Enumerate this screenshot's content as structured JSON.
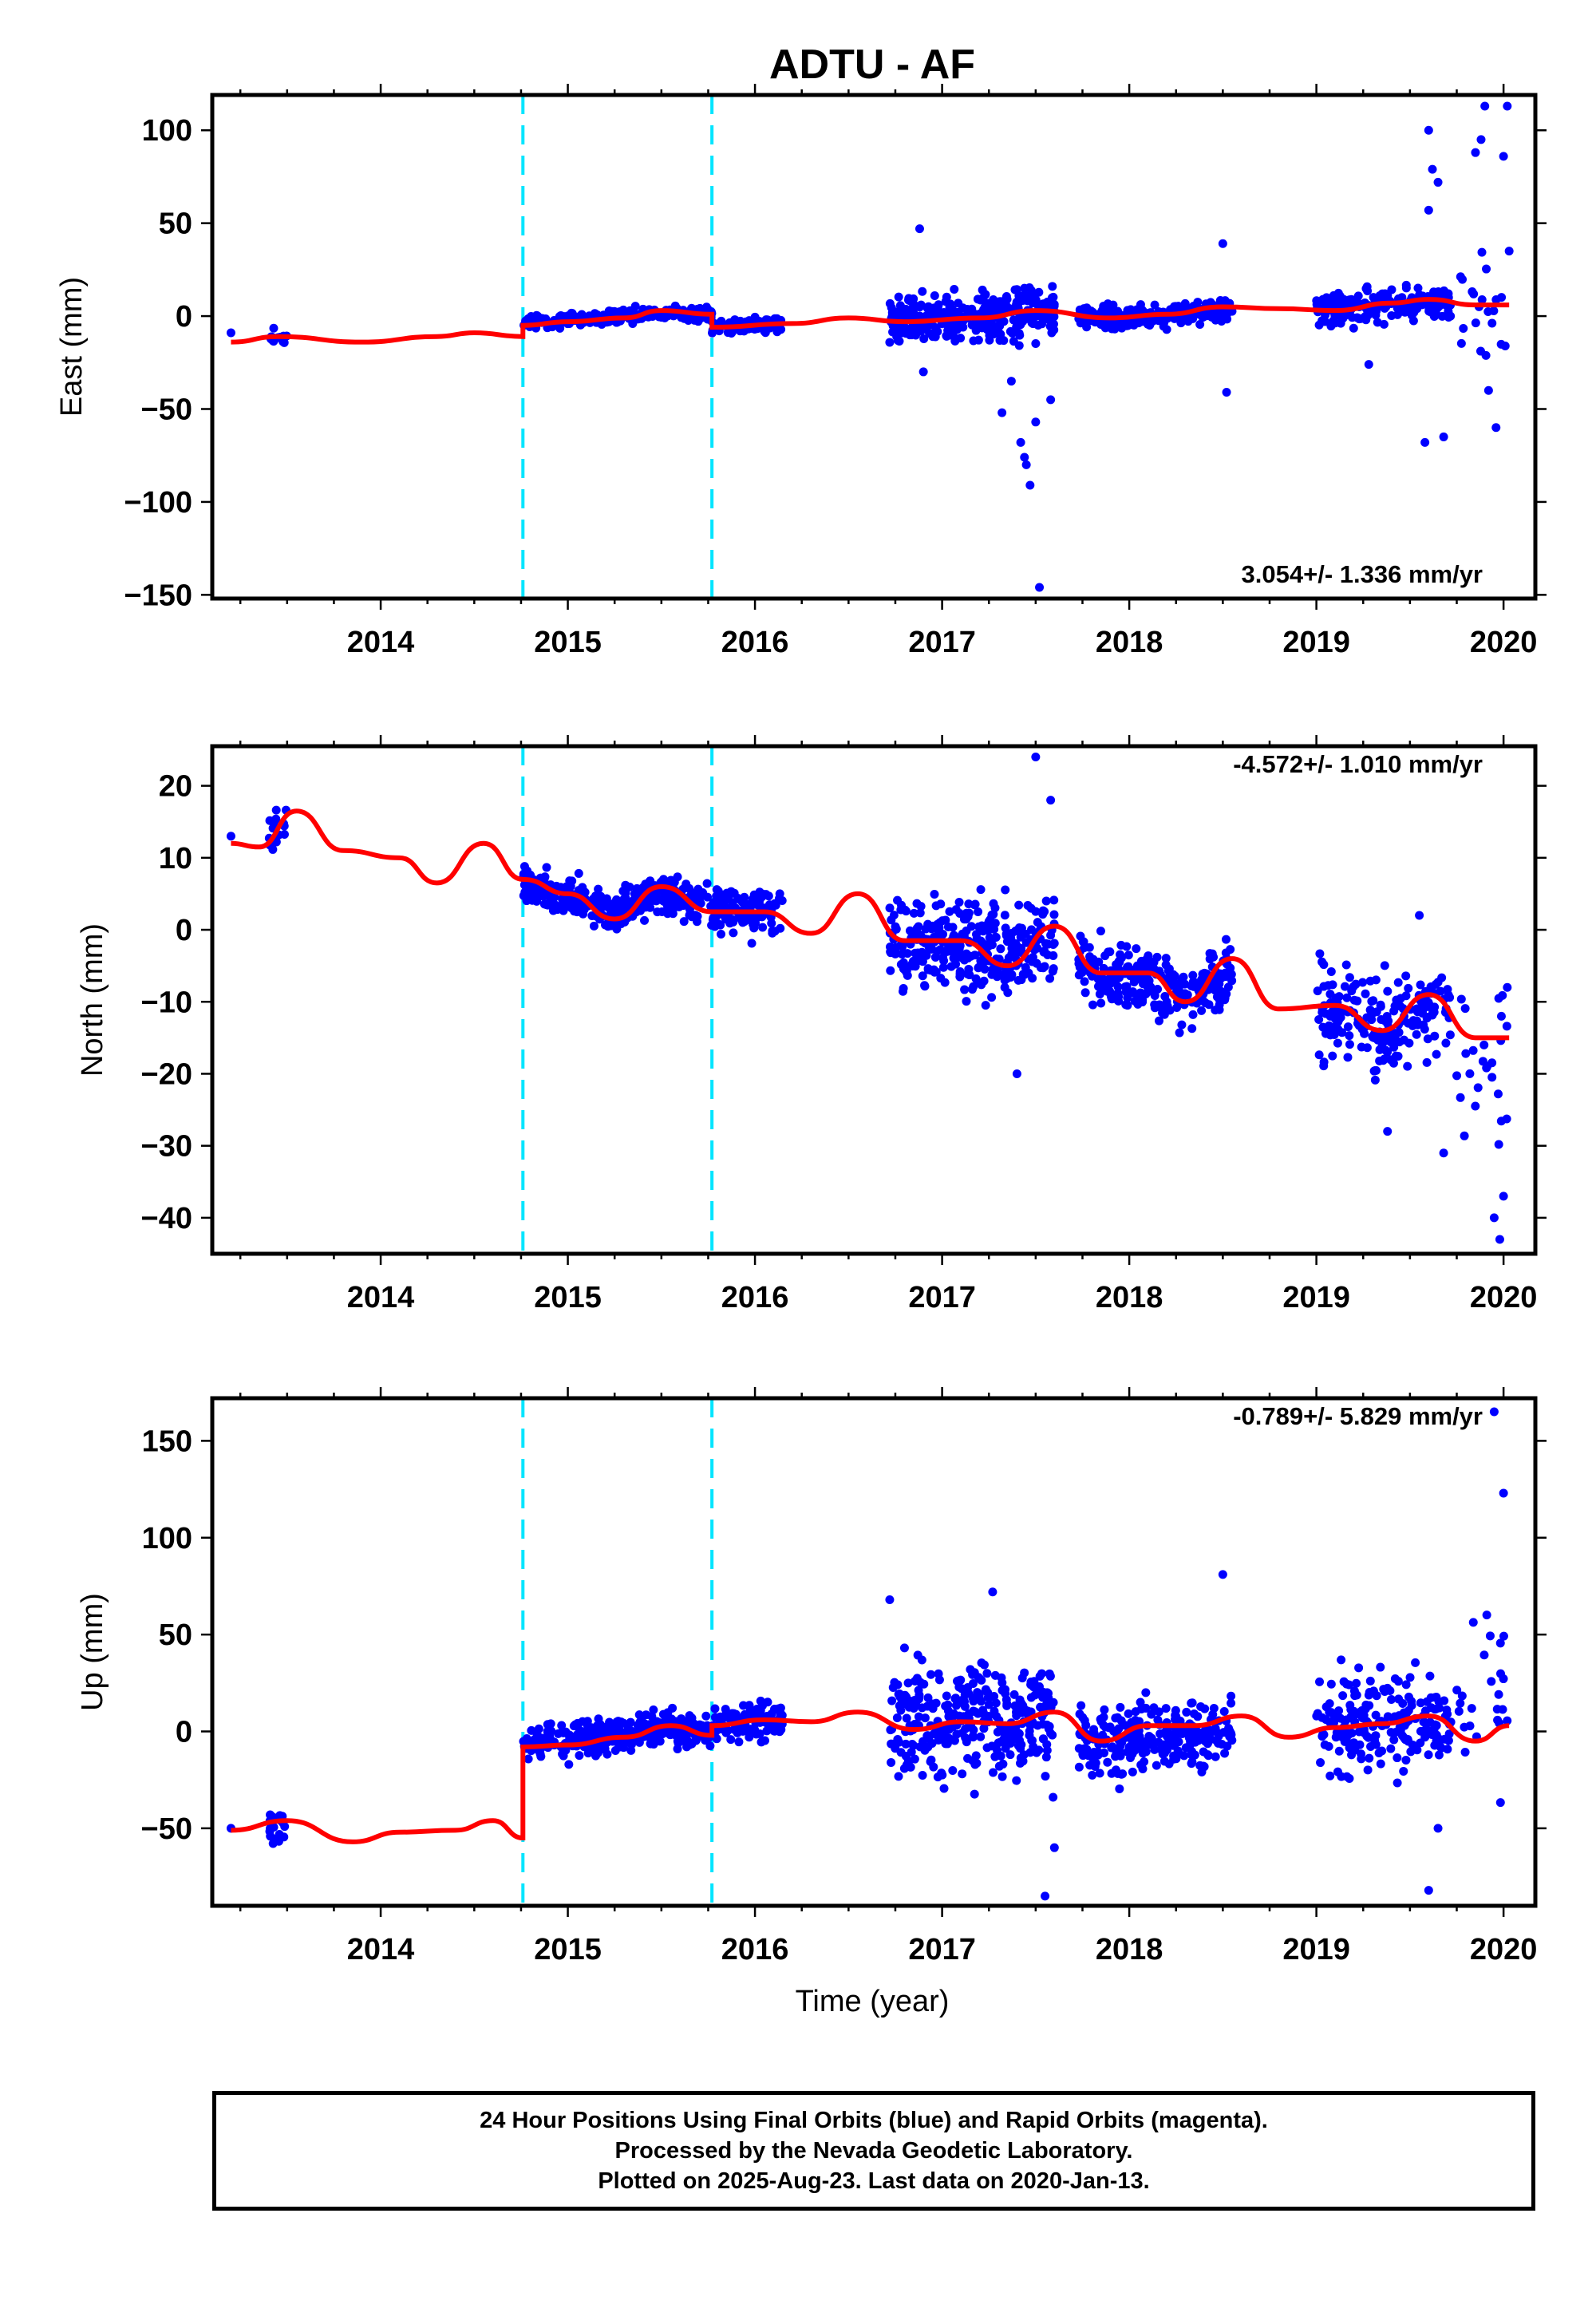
{
  "title": "ADTU - AF",
  "xlabel": "Time (year)",
  "footer": {
    "line1": "24 Hour Positions Using Final Orbits (blue) and Rapid Orbits (magenta).",
    "line2": "Processed by the Nevada Geodetic Laboratory.",
    "line3": "Plotted on 2025-Aug-23. Last data on 2020-Jan-13."
  },
  "colors": {
    "data_points": "#0000ff",
    "model_fit": "#ff0000",
    "equipment_change_lines": "#00e5ff",
    "frame": "#000000"
  },
  "chart_data": [
    {
      "type": "scatter",
      "ylabel": "East (mm)",
      "rate_text": "3.054+/- 1.336 mm/yr",
      "xlim": [
        2013.1,
        2020.17
      ],
      "ylim": [
        -152,
        119
      ],
      "xticks": [
        2014,
        2015,
        2016,
        2017,
        2018,
        2019,
        2020
      ],
      "yticks": [
        -150,
        -100,
        -50,
        0,
        50,
        100
      ],
      "vlines": [
        2014.76,
        2015.77
      ],
      "seed": 11,
      "clusters": [
        {
          "x": [
            2013.4,
            2013.5
          ],
          "y": -11,
          "spread": 3,
          "n": 18
        },
        {
          "x": [
            2014.76,
            2015.77
          ],
          "y": 0,
          "spread": 2.5,
          "n": 330
        },
        {
          "x": [
            2015.77,
            2016.15
          ],
          "y": -5,
          "spread": 2.5,
          "n": 110
        },
        {
          "x": [
            2016.72,
            2017.6
          ],
          "y": 0,
          "spread": 9,
          "n": 330
        },
        {
          "x": [
            2017.73,
            2018.55
          ],
          "y": 0,
          "spread": 4,
          "n": 260
        },
        {
          "x": [
            2019.0,
            2019.72
          ],
          "y": 4,
          "spread": 6,
          "n": 200
        },
        {
          "x": [
            2019.75,
            2020.03
          ],
          "y": 5,
          "spread": 20,
          "n": 20
        }
      ],
      "outliers": [
        {
          "x": 2013.2,
          "y": -9
        },
        {
          "x": 2016.88,
          "y": 47
        },
        {
          "x": 2016.9,
          "y": -30
        },
        {
          "x": 2017.32,
          "y": -52
        },
        {
          "x": 2017.37,
          "y": -35
        },
        {
          "x": 2017.42,
          "y": -68
        },
        {
          "x": 2017.44,
          "y": -76
        },
        {
          "x": 2017.45,
          "y": -80
        },
        {
          "x": 2017.47,
          "y": -91
        },
        {
          "x": 2017.5,
          "y": -57
        },
        {
          "x": 2017.52,
          "y": -146
        },
        {
          "x": 2017.58,
          "y": -45
        },
        {
          "x": 2018.5,
          "y": 39
        },
        {
          "x": 2018.52,
          "y": -41
        },
        {
          "x": 2019.28,
          "y": -26
        },
        {
          "x": 2019.58,
          "y": -68
        },
        {
          "x": 2019.6,
          "y": 100
        },
        {
          "x": 2019.62,
          "y": 79
        },
        {
          "x": 2019.65,
          "y": 72
        },
        {
          "x": 2019.68,
          "y": -65
        },
        {
          "x": 2019.6,
          "y": 57
        },
        {
          "x": 2019.85,
          "y": 88
        },
        {
          "x": 2019.88,
          "y": 95
        },
        {
          "x": 2019.9,
          "y": 113
        },
        {
          "x": 2019.92,
          "y": -40
        },
        {
          "x": 2019.96,
          "y": -60
        },
        {
          "x": 2020.0,
          "y": 86
        },
        {
          "x": 2020.02,
          "y": 113
        },
        {
          "x": 2020.03,
          "y": 35
        }
      ],
      "model_knots": [
        [
          2013.2,
          -14
        ],
        [
          2013.45,
          -11
        ],
        [
          2013.9,
          -14
        ],
        [
          2014.3,
          -11
        ],
        [
          2014.5,
          -9
        ],
        [
          2014.76,
          -11
        ],
        [
          2014.76,
          -5
        ],
        [
          2015.0,
          -3
        ],
        [
          2015.3,
          -1
        ],
        [
          2015.5,
          3
        ],
        [
          2015.77,
          1
        ],
        [
          2015.77,
          -6
        ],
        [
          2016.2,
          -4
        ],
        [
          2016.5,
          -1
        ],
        [
          2016.8,
          -3
        ],
        [
          2017.2,
          -1
        ],
        [
          2017.5,
          3
        ],
        [
          2017.9,
          -1
        ],
        [
          2018.2,
          1
        ],
        [
          2018.5,
          5
        ],
        [
          2018.8,
          4
        ],
        [
          2019.1,
          3
        ],
        [
          2019.4,
          7
        ],
        [
          2019.6,
          9
        ],
        [
          2019.85,
          6
        ],
        [
          2020.03,
          6
        ]
      ]
    },
    {
      "type": "scatter",
      "ylabel": "North (mm)",
      "rate_text": "-4.572+/- 1.010 mm/yr",
      "xlim": [
        2013.1,
        2020.17
      ],
      "ylim": [
        -45,
        25.5
      ],
      "xticks": [
        2014,
        2015,
        2016,
        2017,
        2018,
        2019,
        2020
      ],
      "yticks": [
        -40,
        -30,
        -20,
        -10,
        0,
        10,
        20
      ],
      "vlines": [
        2014.76,
        2015.77
      ],
      "seed": 23,
      "clusters": [
        {
          "x": [
            2013.4,
            2013.5
          ],
          "y": 14,
          "spread": 2.5,
          "n": 18
        },
        {
          "x": [
            2014.76,
            2015.77
          ],
          "y": 4,
          "spread": 1.8,
          "n": 330
        },
        {
          "x": [
            2015.77,
            2016.15
          ],
          "y": 3,
          "spread": 2.2,
          "n": 110
        },
        {
          "x": [
            2016.72,
            2017.6
          ],
          "y": -2,
          "spread": 4.5,
          "n": 330
        },
        {
          "x": [
            2017.73,
            2018.55
          ],
          "y": -8,
          "spread": 3.5,
          "n": 260
        },
        {
          "x": [
            2019.0,
            2019.72
          ],
          "y": -12,
          "spread": 4.5,
          "n": 200
        },
        {
          "x": [
            2019.75,
            2020.03
          ],
          "y": -27,
          "spread": 7,
          "n": 25
        }
      ],
      "outliers": [
        {
          "x": 2013.2,
          "y": 13
        },
        {
          "x": 2017.4,
          "y": -20
        },
        {
          "x": 2017.5,
          "y": 24
        },
        {
          "x": 2017.58,
          "y": 18
        },
        {
          "x": 2019.55,
          "y": 2
        },
        {
          "x": 2019.38,
          "y": -28
        },
        {
          "x": 2019.68,
          "y": -31
        },
        {
          "x": 2019.95,
          "y": -40
        },
        {
          "x": 2019.98,
          "y": -43
        },
        {
          "x": 2020.0,
          "y": -37
        },
        {
          "x": 2020.02,
          "y": -8
        }
      ],
      "model_knots": [
        [
          2013.2,
          12
        ],
        [
          2013.35,
          11.5
        ],
        [
          2013.55,
          16.5
        ],
        [
          2013.8,
          11
        ],
        [
          2014.1,
          10
        ],
        [
          2014.3,
          6.5
        ],
        [
          2014.55,
          12
        ],
        [
          2014.76,
          7
        ],
        [
          2015.0,
          5
        ],
        [
          2015.25,
          1.5
        ],
        [
          2015.5,
          6
        ],
        [
          2015.77,
          2.5
        ],
        [
          2016.05,
          2.5
        ],
        [
          2016.3,
          -0.5
        ],
        [
          2016.55,
          5
        ],
        [
          2016.8,
          -1.5
        ],
        [
          2017.1,
          -1.5
        ],
        [
          2017.35,
          -5
        ],
        [
          2017.6,
          0.5
        ],
        [
          2017.85,
          -6
        ],
        [
          2018.1,
          -6
        ],
        [
          2018.3,
          -10
        ],
        [
          2018.55,
          -4
        ],
        [
          2018.8,
          -11
        ],
        [
          2019.1,
          -10.5
        ],
        [
          2019.35,
          -14
        ],
        [
          2019.6,
          -9
        ],
        [
          2019.85,
          -15
        ],
        [
          2020.03,
          -15
        ]
      ]
    },
    {
      "type": "scatter",
      "ylabel": "Up (mm)",
      "rate_text": "-0.789+/- 5.829 mm/yr",
      "xlim": [
        2013.1,
        2020.17
      ],
      "ylim": [
        -90,
        172
      ],
      "xticks": [
        2014,
        2015,
        2016,
        2017,
        2018,
        2019,
        2020
      ],
      "yticks": [
        -50,
        0,
        50,
        100,
        150
      ],
      "vlines": [
        2014.76,
        2015.77
      ],
      "seed": 37,
      "clusters": [
        {
          "x": [
            2013.4,
            2013.5
          ],
          "y": -50,
          "spread": 7,
          "n": 20
        },
        {
          "x": [
            2014.76,
            2015.77
          ],
          "y": 0,
          "spread": 6,
          "n": 330
        },
        {
          "x": [
            2015.77,
            2016.15
          ],
          "y": 7,
          "spread": 7,
          "n": 110
        },
        {
          "x": [
            2016.72,
            2017.6
          ],
          "y": 10,
          "spread": 20,
          "n": 330
        },
        {
          "x": [
            2017.73,
            2018.55
          ],
          "y": -13,
          "spread": 13,
          "n": 260
        },
        {
          "x": [
            2019.0,
            2019.72
          ],
          "y": 5,
          "spread": 17,
          "n": 200
        },
        {
          "x": [
            2019.75,
            2020.03
          ],
          "y": 55,
          "spread": 40,
          "n": 25
        }
      ],
      "outliers": [
        {
          "x": 2013.2,
          "y": -50
        },
        {
          "x": 2016.72,
          "y": 68
        },
        {
          "x": 2017.27,
          "y": 72
        },
        {
          "x": 2017.55,
          "y": -85
        },
        {
          "x": 2017.6,
          "y": -60
        },
        {
          "x": 2018.5,
          "y": 81
        },
        {
          "x": 2019.6,
          "y": -82
        },
        {
          "x": 2019.65,
          "y": -50
        },
        {
          "x": 2019.95,
          "y": 165
        },
        {
          "x": 2020.0,
          "y": 123
        }
      ],
      "model_knots": [
        [
          2013.2,
          -51
        ],
        [
          2013.5,
          -46
        ],
        [
          2013.85,
          -57
        ],
        [
          2014.1,
          -52
        ],
        [
          2014.4,
          -51
        ],
        [
          2014.6,
          -46
        ],
        [
          2014.76,
          -55
        ],
        [
          2014.76,
          -8
        ],
        [
          2015.0,
          -7
        ],
        [
          2015.3,
          -3
        ],
        [
          2015.55,
          3
        ],
        [
          2015.77,
          -2
        ],
        [
          2015.77,
          3
        ],
        [
          2016.05,
          6
        ],
        [
          2016.3,
          5
        ],
        [
          2016.55,
          10
        ],
        [
          2016.85,
          1
        ],
        [
          2017.1,
          5
        ],
        [
          2017.35,
          4
        ],
        [
          2017.6,
          10
        ],
        [
          2017.85,
          -5
        ],
        [
          2018.1,
          3
        ],
        [
          2018.35,
          3
        ],
        [
          2018.6,
          8
        ],
        [
          2018.85,
          -3
        ],
        [
          2019.1,
          2
        ],
        [
          2019.35,
          4
        ],
        [
          2019.6,
          8
        ],
        [
          2019.85,
          -5
        ],
        [
          2020.03,
          3
        ]
      ]
    }
  ]
}
